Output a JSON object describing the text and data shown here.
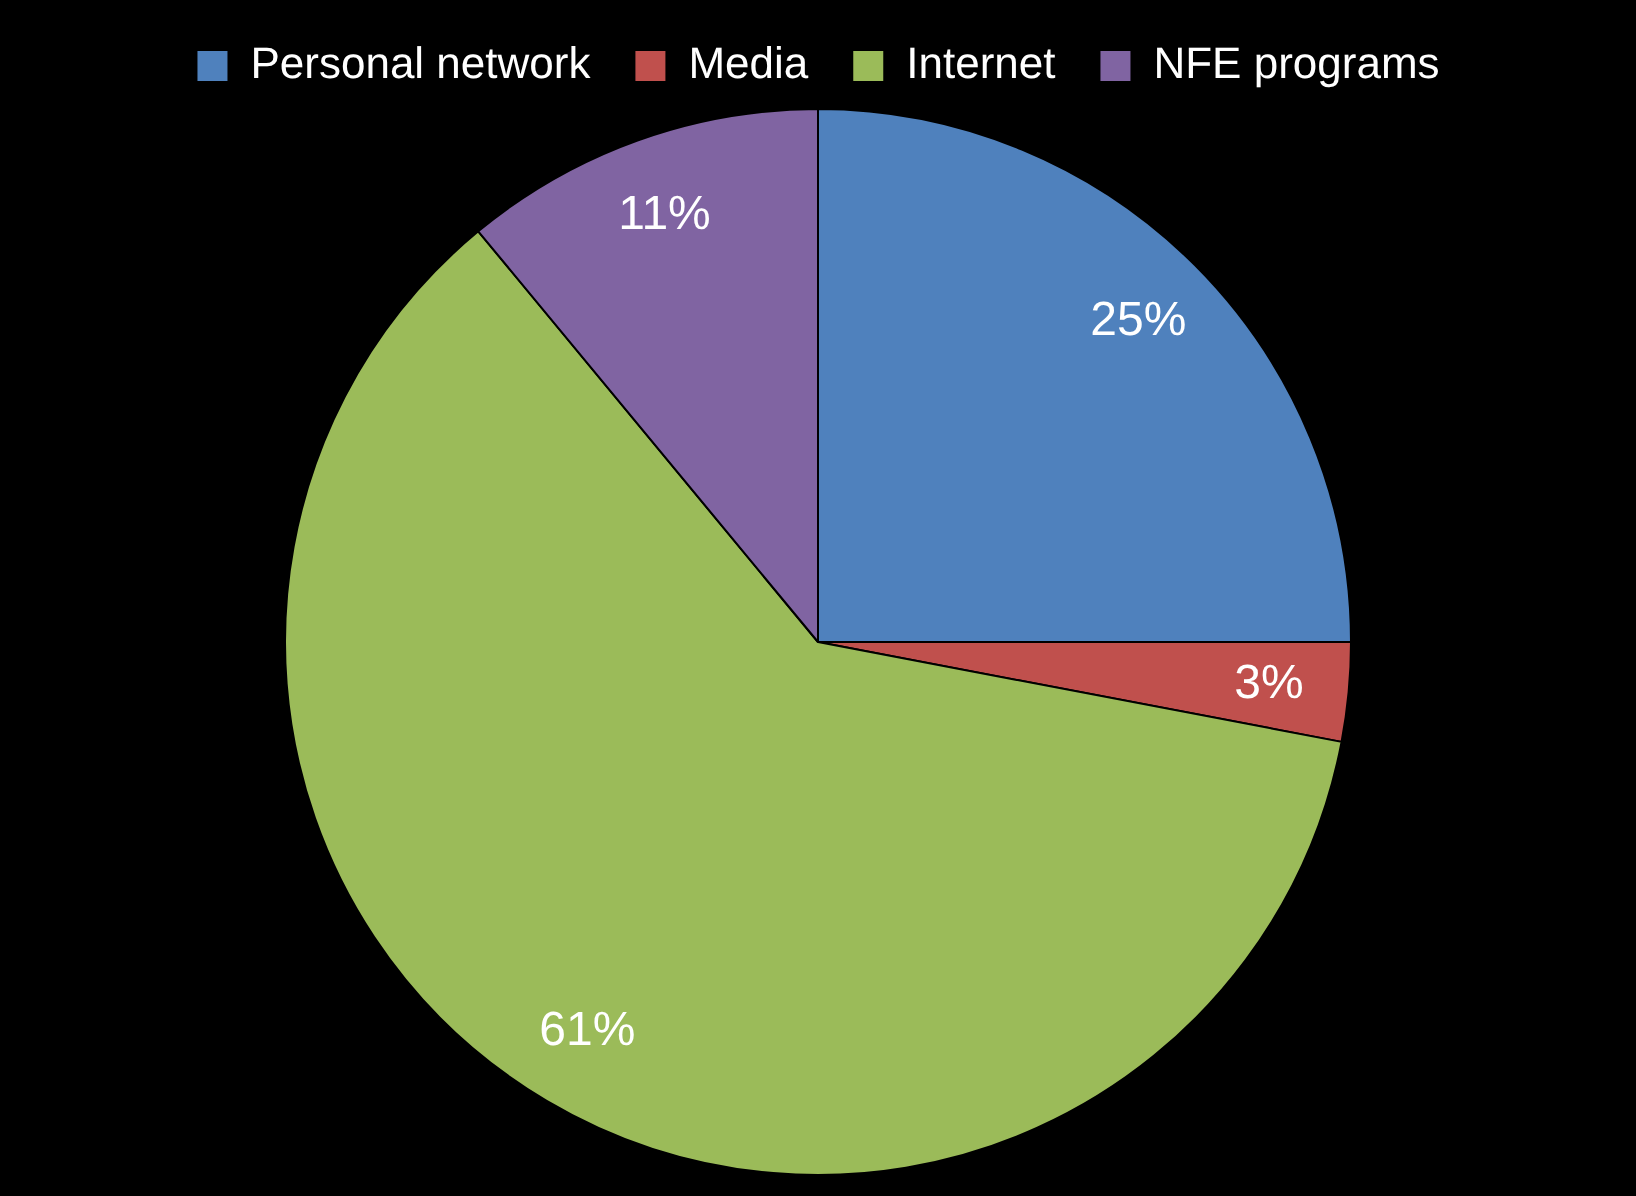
{
  "chart_data": {
    "type": "pie",
    "categories": [
      "Personal network",
      "Media",
      "Internet",
      "NFE programs"
    ],
    "values": [
      25,
      3,
      61,
      11
    ],
    "colors": [
      "#4f81bd",
      "#c0504d",
      "#9bbb59",
      "#8064a2"
    ],
    "value_labels": [
      "25%",
      "3%",
      "61%",
      "11%"
    ],
    "legend": "top"
  }
}
